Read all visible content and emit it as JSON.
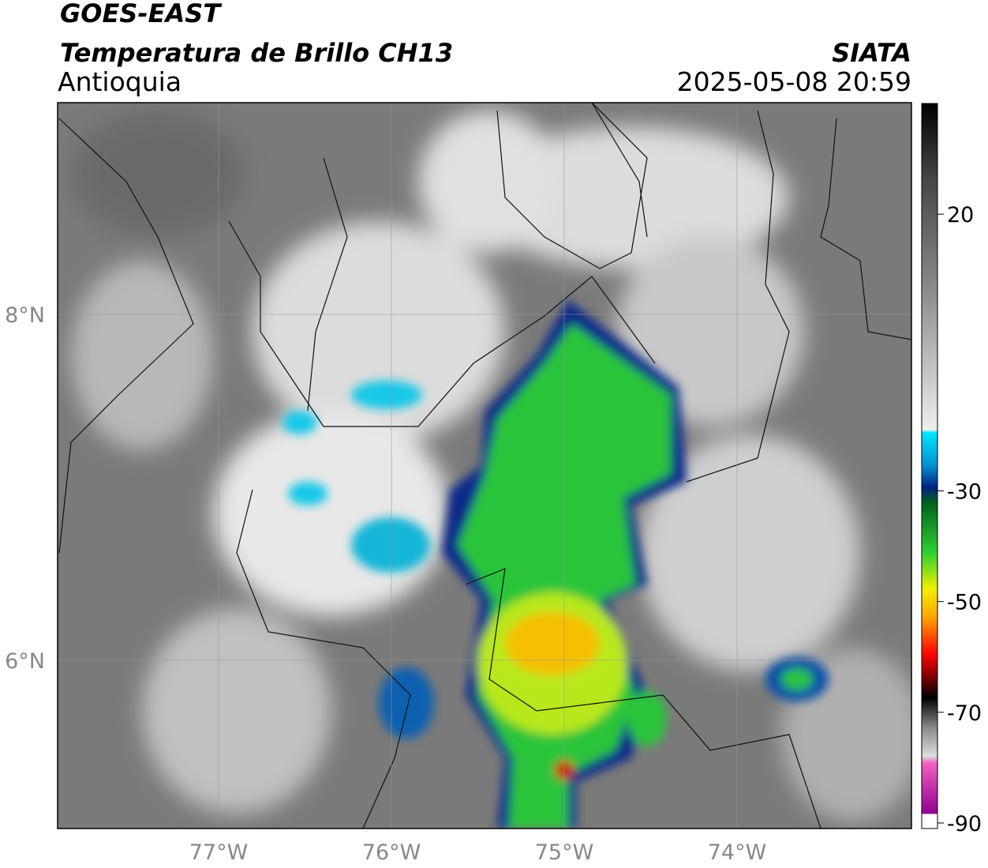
{
  "header": {
    "title": "GOES-EAST",
    "subtitle": "Temperatura de Brillo CH13",
    "region": "Antioquia",
    "source": "SIATA",
    "datetime": "2025-05-08 20:59"
  },
  "map": {
    "lat_labels": [
      "8°N",
      "6°N"
    ],
    "lon_labels": [
      "77°W",
      "76°W",
      "75°W",
      "74°W"
    ]
  },
  "colorbar": {
    "range": [
      -91,
      40
    ],
    "ticks": [
      -90,
      -70,
      -50,
      -30,
      20
    ]
  }
}
